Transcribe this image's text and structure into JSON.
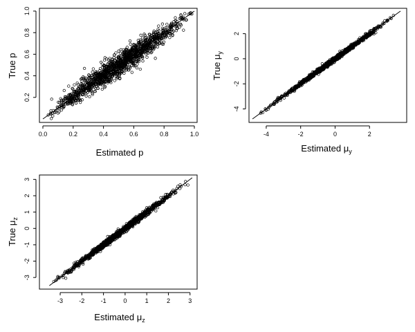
{
  "chart_data": [
    {
      "type": "scatter",
      "id": "p",
      "xlabel": "Estimated p",
      "ylabel": "True p",
      "xlim": [
        0.0,
        1.0
      ],
      "ylim": [
        0.0,
        1.0
      ],
      "xticks": [
        "0.0",
        "0.2",
        "0.4",
        "0.6",
        "0.8",
        "1.0"
      ],
      "yticks": [
        "0.2",
        "0.4",
        "0.6",
        "0.8",
        "1.0"
      ],
      "reference_line": "y = x",
      "cloud": {
        "min": 0.03,
        "max": 0.98,
        "spread": 0.055,
        "n": 1400
      }
    },
    {
      "type": "scatter",
      "id": "mu_y",
      "xlabel": "Estimated μ",
      "xlabel_sub": "y",
      "ylabel": "True μ",
      "ylabel_sub": "y",
      "xlim": [
        -4.8,
        4.0
      ],
      "ylim": [
        -4.8,
        3.8
      ],
      "xticks": [
        "-4",
        "-2",
        "0",
        "2"
      ],
      "yticks": [
        "-4",
        "-2",
        "0",
        "2"
      ],
      "reference_line": "y = x",
      "cloud": {
        "min": -4.3,
        "max": 3.5,
        "spread": 0.09,
        "n": 1100
      }
    },
    {
      "type": "scatter",
      "id": "mu_z",
      "xlabel": "Estimated μ",
      "xlabel_sub": "z",
      "ylabel": "True μ",
      "ylabel_sub": "z",
      "xlim": [
        -3.8,
        3.2
      ],
      "ylim": [
        -3.5,
        3.1
      ],
      "xticks": [
        "-3",
        "-2",
        "-1",
        "0",
        "1",
        "2",
        "3"
      ],
      "yticks": [
        "-3",
        "-2",
        "-1",
        "0",
        "1",
        "2",
        "3"
      ],
      "reference_line": "y = x",
      "cloud": {
        "min": -3.4,
        "max": 2.9,
        "spread": 0.1,
        "n": 1100
      }
    }
  ]
}
